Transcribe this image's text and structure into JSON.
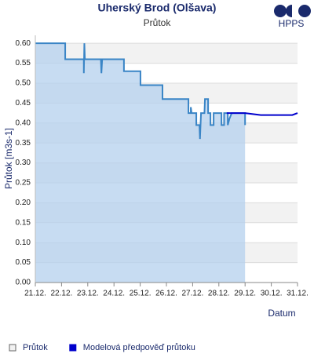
{
  "brand": "HPPS",
  "chart_data": {
    "type": "line",
    "title": "Uherský Brod (Olšava)",
    "subtitle": "Průtok",
    "x_label": "Datum",
    "y_label": "Průtok [m3s-1]",
    "xlim": [
      21,
      31
    ],
    "ylim": [
      0,
      0.62
    ],
    "xticks": [
      {
        "value": 21,
        "label": "21.12."
      },
      {
        "value": 22,
        "label": "22.12."
      },
      {
        "value": 23,
        "label": "23.12."
      },
      {
        "value": 24,
        "label": "24.12."
      },
      {
        "value": 25,
        "label": "25.12."
      },
      {
        "value": 26,
        "label": "26.12."
      },
      {
        "value": 27,
        "label": "27.12."
      },
      {
        "value": 28,
        "label": "28.12."
      },
      {
        "value": 29,
        "label": "29.12."
      },
      {
        "value": 30,
        "label": "30.12."
      },
      {
        "value": 31,
        "label": "31.12."
      }
    ],
    "yticks": [
      {
        "value": 0,
        "label": "0.00"
      },
      {
        "value": 0.05,
        "label": "0.05"
      },
      {
        "value": 0.1,
        "label": "0.10"
      },
      {
        "value": 0.15,
        "label": "0.15"
      },
      {
        "value": 0.2,
        "label": "0.20"
      },
      {
        "value": 0.25,
        "label": "0.25"
      },
      {
        "value": 0.3,
        "label": "0.30"
      },
      {
        "value": 0.35,
        "label": "0.35"
      },
      {
        "value": 0.4,
        "label": "0.40"
      },
      {
        "value": 0.45,
        "label": "0.45"
      },
      {
        "value": 0.5,
        "label": "0.50"
      },
      {
        "value": 0.55,
        "label": "0.55"
      },
      {
        "value": 0.6,
        "label": "0.60"
      }
    ],
    "grid": true,
    "series": [
      {
        "name": "Průtok",
        "color": "#3a85c6",
        "fill": "#b4d0ee",
        "x": [
          21.0,
          22.14,
          22.14,
          22.85,
          22.85,
          22.87,
          22.89,
          23.5,
          23.52,
          23.55,
          24.38,
          24.38,
          25.01,
          25.01,
          25.85,
          25.85,
          26.84,
          26.84,
          26.93,
          26.93,
          26.96,
          27.14,
          27.14,
          27.26,
          27.28,
          27.32,
          27.45,
          27.47,
          27.59,
          27.59,
          27.68,
          27.68,
          27.8,
          27.8,
          28.1,
          28.1,
          28.2,
          28.2,
          28.34,
          28.34,
          28.4,
          28.49,
          29.0,
          29.0
        ],
        "values": [
          0.6,
          0.6,
          0.56,
          0.56,
          0.525,
          0.6,
          0.56,
          0.56,
          0.525,
          0.56,
          0.56,
          0.53,
          0.53,
          0.495,
          0.495,
          0.46,
          0.46,
          0.425,
          0.425,
          0.44,
          0.425,
          0.425,
          0.395,
          0.395,
          0.36,
          0.425,
          0.425,
          0.46,
          0.46,
          0.425,
          0.425,
          0.395,
          0.395,
          0.425,
          0.425,
          0.395,
          0.395,
          0.425,
          0.425,
          0.395,
          0.41,
          0.425,
          0.425,
          0.395
        ]
      },
      {
        "name": "Modelová předpověď průtoku",
        "color": "#0000cc",
        "x": [
          28.3,
          29.0,
          29.6,
          30.8,
          31.0
        ],
        "values": [
          0.425,
          0.425,
          0.42,
          0.42,
          0.425
        ]
      }
    ]
  }
}
